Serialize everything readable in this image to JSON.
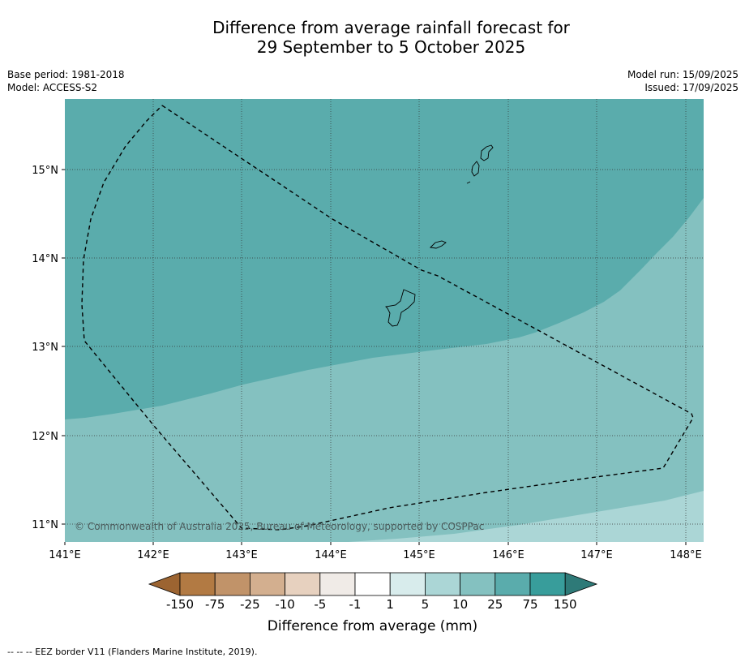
{
  "title_line1": "Difference from average rainfall forecast for",
  "title_line2": "29 September to 5 October 2025",
  "base_period": "Base period: 1981-2018",
  "model": "Model: ACCESS-S2",
  "model_run": "Model run: 15/09/2025",
  "issued": "Issued: 17/09/2025",
  "copyright": "© Commonwealth of Australia 2025, Bureau of Meteorology, supported by COSPPac",
  "lon_ticks": [
    "141°E",
    "142°E",
    "143°E",
    "144°E",
    "145°E",
    "146°E",
    "147°E",
    "148°E"
  ],
  "lat_ticks": [
    "15°N",
    "14°N",
    "13°N",
    "12°N",
    "11°N"
  ],
  "colorbar": {
    "title": "Difference from average (mm)",
    "tick_labels": [
      "-150",
      "-75",
      "-25",
      "-10",
      "-5",
      "-1",
      "1",
      "5",
      "10",
      "25",
      "75",
      "150"
    ],
    "colors": [
      "#9c6431",
      "#b27a43",
      "#c19369",
      "#d3af8f",
      "#e7d1bf",
      "#f0ebe7",
      "#ffffff",
      "#d8ecec",
      "#abd6d6",
      "#84c1c0",
      "#5aacac",
      "#389d9b",
      "#2e7a78"
    ]
  },
  "legend_footnote": "--  --  -- EEZ border V11 (Flanders Marine Institute, 2019).",
  "zones": [
    {
      "category": "25 to 75",
      "color": "#5aacac"
    },
    {
      "category": "10 to 25",
      "color": "#84c1c0"
    },
    {
      "category": "5 to 10",
      "color": "#abd6d6"
    }
  ]
}
